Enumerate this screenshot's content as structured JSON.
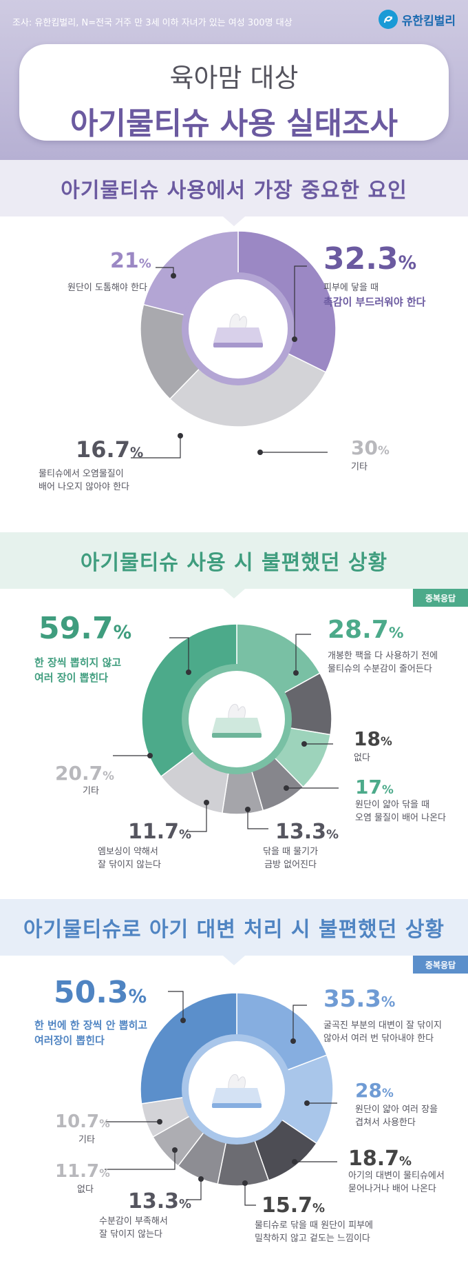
{
  "header": {
    "source": "조사: 유한킴벌리, N=전국 거주 만 3세 이하 자녀가 있는 여성 300명 대상",
    "logo_text": "유한킴벌리",
    "title_line1": "육아맘 대상",
    "title_line2": "아기물티슈 사용 실태조사"
  },
  "sections": [
    {
      "title": "아기물티슈 사용에서 가장 중요한 요인"
    },
    {
      "title": "아기물티슈 사용 시 불편했던 상황",
      "tag": "중복응답"
    },
    {
      "title": "아기물티슈로 아기 대변 처리 시 불편했던 상황",
      "tag": "중복응답"
    }
  ],
  "colors": {
    "purple_dark": "#6b5aa0",
    "purple": "#9b88c4",
    "purple_light": "#b3a5d4",
    "green": "#4caa8a",
    "green_mid": "#79c0a4",
    "green_light": "#9dd3bb",
    "blue": "#5b8fcb",
    "blue_mid": "#86aee0",
    "blue_light": "#a9c6ea",
    "gray_dark": "#5f5f66",
    "gray": "#8b8b92",
    "gray_light": "#adadb2",
    "gray_pale": "#d3d3d7"
  },
  "chart_data": [
    {
      "type": "pie",
      "variant": "donut",
      "title": "아기물티슈 사용에서 가장 중요한 요인",
      "unit": "%",
      "slices": [
        {
          "value": 32.3,
          "pct": "%",
          "lines": [
            "피부에 닿을 때"
          ],
          "hl_lines": [
            "촉감이 부드러워야 한다"
          ],
          "color": "#9b88c4"
        },
        {
          "value": 30,
          "pct": "%",
          "lines": [
            "기타"
          ],
          "hl_lines": [],
          "color": "#d3d3d7"
        },
        {
          "value": 16.7,
          "pct": "%",
          "lines": [
            "물티슈에서 오염물질이",
            "배어 나오지 않아야 한다"
          ],
          "hl_lines": [],
          "color": "#a9a9ae"
        },
        {
          "value": 21,
          "pct": "%",
          "lines": [
            "원단이 도톰해야 한다"
          ],
          "hl_lines": [],
          "color": "#b3a5d4"
        }
      ]
    },
    {
      "type": "pie",
      "variant": "donut",
      "title": "아기물티슈 사용 시 불편했던 상황",
      "note": "중복응답",
      "unit": "%",
      "slices": [
        {
          "value": 28.7,
          "pct": "%",
          "lines": [
            "개봉한 팩을 다 사용하기 전에",
            "물티슈의 수분감이 줄어든다"
          ],
          "hl_lines": [],
          "color": "#79c0a4"
        },
        {
          "value": 18,
          "pct": "%",
          "lines": [
            "없다"
          ],
          "hl_lines": [],
          "color": "#66666c"
        },
        {
          "value": 17,
          "pct": "%",
          "lines": [
            "원단이 얇아 닦을 때",
            "오염 물질이 배어 나온다"
          ],
          "hl_lines": [],
          "color": "#9dd3bb"
        },
        {
          "value": 13.3,
          "pct": "%",
          "lines": [
            "닦을 때 물기가",
            "금방 없어진다"
          ],
          "hl_lines": [],
          "color": "#86868c"
        },
        {
          "value": 11.7,
          "pct": "%",
          "lines": [
            "엠보싱이 약해서",
            "잘 닦이지 않는다"
          ],
          "hl_lines": [],
          "color": "#a5a5aa"
        },
        {
          "value": 20.7,
          "pct": "%",
          "lines": [
            "기타"
          ],
          "hl_lines": [],
          "color": "#d0d0d4"
        },
        {
          "value": 59.7,
          "pct": "%",
          "lines": [],
          "hl_lines": [
            "한 장씩 뽑히지 않고",
            "여러 장이 뽑힌다"
          ],
          "color": "#4caa8a"
        }
      ]
    },
    {
      "type": "pie",
      "variant": "donut",
      "title": "아기물티슈로 아기 대변 처리 시 불편했던 상황",
      "note": "중복응답",
      "unit": "%",
      "slices": [
        {
          "value": 35.3,
          "pct": "%",
          "lines": [
            "굴곡진 부분의 대변이 잘 닦이지",
            "않아서 여러 번 닦아내야 한다"
          ],
          "hl_lines": [],
          "color": "#86aee0"
        },
        {
          "value": 28,
          "pct": "%",
          "lines": [
            "원단이 얇아 여러 장을",
            "겹쳐서 사용한다"
          ],
          "hl_lines": [],
          "color": "#a9c6ea"
        },
        {
          "value": 18.7,
          "pct": "%",
          "lines": [
            "아기의 대변이 물티슈에서",
            "묻어나거나 배어 나온다"
          ],
          "hl_lines": [],
          "color": "#4d4d54"
        },
        {
          "value": 15.7,
          "pct": "%",
          "lines": [
            "물티슈로 닦을 때 원단이 피부에",
            "밀착하지 않고 겉도는 느낌이다"
          ],
          "hl_lines": [],
          "color": "#6c6c72"
        },
        {
          "value": 13.3,
          "pct": "%",
          "lines": [
            "수분감이 부족해서",
            "잘 닦이지 않는다"
          ],
          "hl_lines": [],
          "color": "#8d8d93"
        },
        {
          "value": 11.7,
          "pct": "%",
          "lines": [
            "없다"
          ],
          "hl_lines": [],
          "color": "#adadb2"
        },
        {
          "value": 10.7,
          "pct": "%",
          "lines": [
            "기타"
          ],
          "hl_lines": [],
          "color": "#d3d3d7"
        },
        {
          "value": 50.3,
          "pct": "%",
          "lines": [],
          "hl_lines": [
            "한 번에 한 장씩 안 뽑히고",
            "여러장이 뽑힌다"
          ],
          "color": "#5b8fcb"
        }
      ]
    }
  ]
}
